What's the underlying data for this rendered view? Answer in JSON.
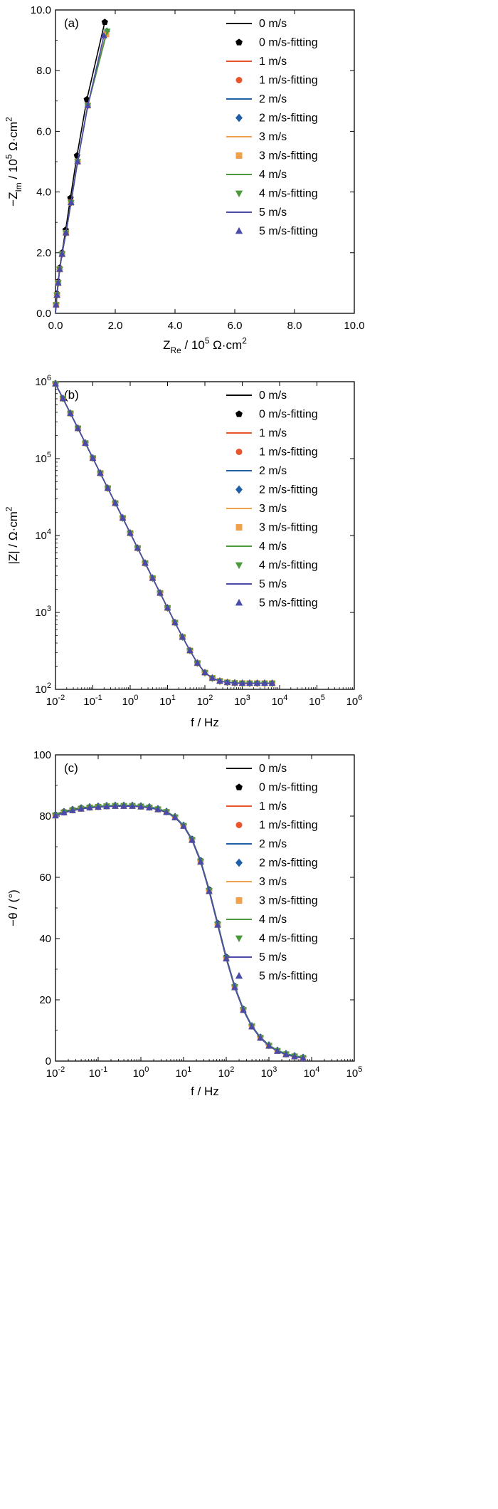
{
  "colors": {
    "0 m/s": "#000000",
    "1 m/s": "#e8552d",
    "2 m/s": "#1f5fa8",
    "3 m/s": "#f0a04b",
    "4 m/s": "#4a9a3c",
    "5 m/s": "#4a4aa8"
  },
  "chart_data": [
    {
      "type": "scatter",
      "panel_label": "(a)",
      "xlabel": "Z_Re / 10^5 Ω·cm^2",
      "ylabel": "−Z_Im / 10^5 Ω·cm^2",
      "xlim": [
        0,
        10
      ],
      "ylim": [
        0,
        10
      ],
      "xticks": [
        "0.0",
        "2.0",
        "4.0",
        "6.0",
        "8.0",
        "10.0"
      ],
      "yticks": [
        "0.0",
        "2.0",
        "4.0",
        "6.0",
        "8.0",
        "10.0"
      ],
      "legend_position": "top-right",
      "legend": [
        "0 m/s",
        "0 m/s-fitting",
        "1 m/s",
        "1 m/s-fitting",
        "2 m/s",
        "2 m/s-fitting",
        "3 m/s",
        "3 m/s-fitting",
        "4 m/s",
        "4 m/s-fitting",
        "5 m/s",
        "5 m/s-fitting"
      ],
      "series": [
        {
          "name": "0 m/s",
          "x": [
            0.0,
            0.02,
            0.05,
            0.09,
            0.14,
            0.22,
            0.34,
            0.5,
            0.72,
            1.05,
            1.65
          ],
          "y": [
            0.0,
            0.3,
            0.65,
            1.05,
            1.5,
            2.0,
            2.75,
            3.8,
            5.2,
            7.05,
            9.6
          ]
        },
        {
          "name": "1 m/s",
          "x": [
            0.0,
            0.02,
            0.05,
            0.09,
            0.14,
            0.22,
            0.35,
            0.52,
            0.74,
            1.08,
            1.7
          ],
          "y": [
            0.0,
            0.28,
            0.6,
            1.0,
            1.45,
            1.95,
            2.65,
            3.65,
            5.0,
            6.85,
            9.25
          ]
        },
        {
          "name": "2 m/s",
          "x": [
            0.0,
            0.02,
            0.05,
            0.09,
            0.14,
            0.22,
            0.35,
            0.52,
            0.74,
            1.08,
            1.72
          ],
          "y": [
            0.0,
            0.28,
            0.6,
            1.0,
            1.45,
            1.95,
            2.65,
            3.65,
            5.0,
            6.85,
            9.3
          ]
        },
        {
          "name": "3 m/s",
          "x": [
            0.0,
            0.02,
            0.05,
            0.09,
            0.14,
            0.22,
            0.35,
            0.52,
            0.74,
            1.08,
            1.7
          ],
          "y": [
            0.0,
            0.28,
            0.6,
            1.0,
            1.45,
            1.95,
            2.65,
            3.65,
            5.0,
            6.85,
            9.2
          ]
        },
        {
          "name": "4 m/s",
          "x": [
            0.0,
            0.02,
            0.05,
            0.09,
            0.14,
            0.22,
            0.35,
            0.52,
            0.74,
            1.08,
            1.73
          ],
          "y": [
            0.0,
            0.28,
            0.6,
            1.0,
            1.45,
            1.95,
            2.65,
            3.65,
            5.0,
            6.85,
            9.3
          ]
        },
        {
          "name": "5 m/s",
          "x": [
            0.0,
            0.02,
            0.05,
            0.09,
            0.14,
            0.22,
            0.35,
            0.52,
            0.74,
            1.08,
            1.62
          ],
          "y": [
            0.0,
            0.28,
            0.6,
            1.0,
            1.45,
            1.95,
            2.65,
            3.65,
            5.0,
            6.85,
            9.15
          ]
        }
      ]
    },
    {
      "type": "line",
      "panel_label": "(b)",
      "xlabel": "f / Hz",
      "ylabel": "|Z| / Ω·cm^2",
      "xscale": "log",
      "yscale": "log",
      "xlim": [
        0.01,
        1000000
      ],
      "ylim": [
        100,
        1000000
      ],
      "xticks": [
        "10^-2",
        "10^-1",
        "10^0",
        "10^1",
        "10^2",
        "10^3",
        "10^4",
        "10^5",
        "10^6"
      ],
      "yticks": [
        "10^2",
        "10^3",
        "10^4",
        "10^5",
        "10^6"
      ],
      "legend_position": "top-right",
      "legend": [
        "0 m/s",
        "0 m/s-fitting",
        "1 m/s",
        "1 m/s-fitting",
        "2 m/s",
        "2 m/s-fitting",
        "3 m/s",
        "3 m/s-fitting",
        "4 m/s",
        "4 m/s-fitting",
        "5 m/s",
        "5 m/s-fitting"
      ],
      "x": [
        0.01,
        0.0158,
        0.0251,
        0.0398,
        0.0631,
        0.1,
        0.158,
        0.251,
        0.398,
        0.631,
        1,
        1.58,
        2.51,
        3.98,
        6.31,
        10,
        15.8,
        25.1,
        39.8,
        63.1,
        100,
        158,
        251,
        398,
        631,
        1000,
        1580,
        2510,
        3980,
        6310
      ],
      "series": [
        {
          "name": "0 m/s",
          "values": [
            950000,
            610000,
            390000,
            250000,
            160000,
            102000,
            65000,
            41500,
            26500,
            17000,
            10800,
            6900,
            4400,
            2800,
            1800,
            1150,
            740,
            480,
            320,
            220,
            165,
            140,
            128,
            123,
            121,
            120,
            120,
            120,
            120,
            120
          ]
        },
        {
          "name": "1 m/s",
          "values": [
            940000,
            605000,
            388000,
            248000,
            159000,
            101500,
            64800,
            41300,
            26400,
            16900,
            10750,
            6870,
            4380,
            2790,
            1790,
            1145,
            738,
            479,
            319,
            219,
            165,
            140,
            128,
            123,
            121,
            120,
            120,
            120,
            120,
            120
          ]
        },
        {
          "name": "2 m/s",
          "values": [
            945000,
            607000,
            389000,
            249000,
            159500,
            101800,
            64900,
            41400,
            26450,
            16950,
            10780,
            6880,
            4390,
            2795,
            1795,
            1148,
            739,
            480,
            320,
            220,
            165,
            140,
            128,
            123,
            121,
            120,
            120,
            120,
            120,
            120
          ]
        },
        {
          "name": "3 m/s",
          "values": [
            938000,
            604000,
            387000,
            247500,
            158800,
            101300,
            64700,
            41250,
            26350,
            16880,
            10740,
            6860,
            4375,
            2788,
            1788,
            1144,
            737,
            479,
            319,
            219,
            165,
            140,
            128,
            123,
            121,
            120,
            120,
            120,
            120,
            120
          ]
        },
        {
          "name": "4 m/s",
          "values": [
            942000,
            606000,
            388500,
            248500,
            159200,
            101600,
            64850,
            41350,
            26420,
            16920,
            10760,
            6875,
            4385,
            2792,
            1792,
            1146,
            738,
            479,
            319,
            219,
            165,
            140,
            128,
            123,
            121,
            120,
            120,
            120,
            120,
            120
          ]
        },
        {
          "name": "5 m/s",
          "values": [
            936000,
            603000,
            386500,
            247000,
            158500,
            101100,
            64600,
            41200,
            26300,
            16850,
            10730,
            6855,
            4370,
            2785,
            1786,
            1143,
            737,
            478,
            319,
            219,
            165,
            140,
            128,
            123,
            121,
            120,
            120,
            120,
            120,
            120
          ]
        }
      ]
    },
    {
      "type": "line",
      "panel_label": "(c)",
      "xlabel": "f / Hz",
      "ylabel": "−θ / (°)",
      "xscale": "log",
      "xlim": [
        0.01,
        100000
      ],
      "ylim": [
        0,
        100
      ],
      "xticks": [
        "10^-2",
        "10^-1",
        "10^0",
        "10^1",
        "10^2",
        "10^3",
        "10^4",
        "10^5"
      ],
      "yticks": [
        "0",
        "20",
        "40",
        "60",
        "80",
        "100"
      ],
      "legend_position": "top-right",
      "legend": [
        "0 m/s",
        "0 m/s-fitting",
        "1 m/s",
        "1 m/s-fitting",
        "2 m/s",
        "2 m/s-fitting",
        "3 m/s",
        "3 m/s-fitting",
        "4 m/s",
        "4 m/s-fitting",
        "5 m/s",
        "5 m/s-fitting"
      ],
      "x": [
        0.01,
        0.0158,
        0.0251,
        0.0398,
        0.0631,
        0.1,
        0.158,
        0.251,
        0.398,
        0.631,
        1,
        1.58,
        2.51,
        3.98,
        6.31,
        10,
        15.8,
        25.1,
        39.8,
        63.1,
        100,
        158,
        251,
        398,
        631,
        1000,
        1580,
        2510,
        3980,
        6310
      ],
      "series": [
        {
          "name": "0 m/s",
          "values": [
            80.5,
            81.5,
            82.2,
            82.7,
            83.0,
            83.2,
            83.4,
            83.5,
            83.5,
            83.5,
            83.3,
            83.0,
            82.4,
            81.5,
            79.8,
            77.0,
            72.5,
            65.5,
            56.0,
            45.0,
            34.0,
            24.5,
            17.0,
            11.5,
            7.8,
            5.2,
            3.5,
            2.4,
            1.7,
            1.2
          ]
        },
        {
          "name": "1 m/s",
          "values": [
            80.3,
            81.3,
            82.0,
            82.5,
            82.9,
            83.1,
            83.3,
            83.4,
            83.4,
            83.4,
            83.2,
            82.9,
            82.3,
            81.4,
            79.7,
            76.9,
            72.3,
            65.2,
            55.6,
            44.6,
            33.6,
            24.2,
            16.8,
            11.4,
            7.7,
            5.1,
            3.4,
            2.3,
            1.6,
            1.1
          ]
        },
        {
          "name": "2 m/s",
          "values": [
            80.4,
            81.4,
            82.1,
            82.6,
            83.0,
            83.2,
            83.4,
            83.5,
            83.5,
            83.5,
            83.3,
            83.0,
            82.4,
            81.5,
            79.8,
            77.0,
            72.4,
            65.4,
            55.8,
            44.8,
            33.8,
            24.4,
            16.9,
            11.5,
            7.8,
            5.2,
            3.5,
            2.4,
            1.7,
            1.2
          ]
        },
        {
          "name": "3 m/s",
          "values": [
            80.2,
            81.2,
            81.9,
            82.4,
            82.8,
            83.0,
            83.2,
            83.3,
            83.3,
            83.3,
            83.1,
            82.8,
            82.2,
            81.3,
            79.6,
            76.8,
            72.2,
            65.1,
            55.5,
            44.5,
            33.5,
            24.1,
            16.7,
            11.3,
            7.6,
            5.0,
            3.3,
            2.2,
            1.5,
            1.0
          ]
        },
        {
          "name": "4 m/s",
          "values": [
            80.3,
            81.3,
            82.0,
            82.5,
            82.9,
            83.1,
            83.3,
            83.4,
            83.4,
            83.4,
            83.2,
            82.9,
            82.3,
            81.4,
            79.7,
            76.9,
            72.3,
            65.3,
            55.7,
            44.7,
            33.7,
            24.3,
            16.8,
            11.4,
            7.7,
            5.1,
            3.4,
            2.3,
            1.6,
            1.1
          ]
        },
        {
          "name": "5 m/s",
          "values": [
            80.1,
            81.1,
            81.8,
            82.3,
            82.7,
            82.9,
            83.1,
            83.2,
            83.2,
            83.2,
            83.0,
            82.7,
            82.1,
            81.2,
            79.5,
            76.7,
            72.1,
            65.0,
            55.4,
            44.4,
            33.4,
            24.0,
            16.6,
            11.2,
            7.5,
            4.9,
            3.2,
            2.1,
            1.4,
            0.9
          ]
        }
      ]
    }
  ]
}
